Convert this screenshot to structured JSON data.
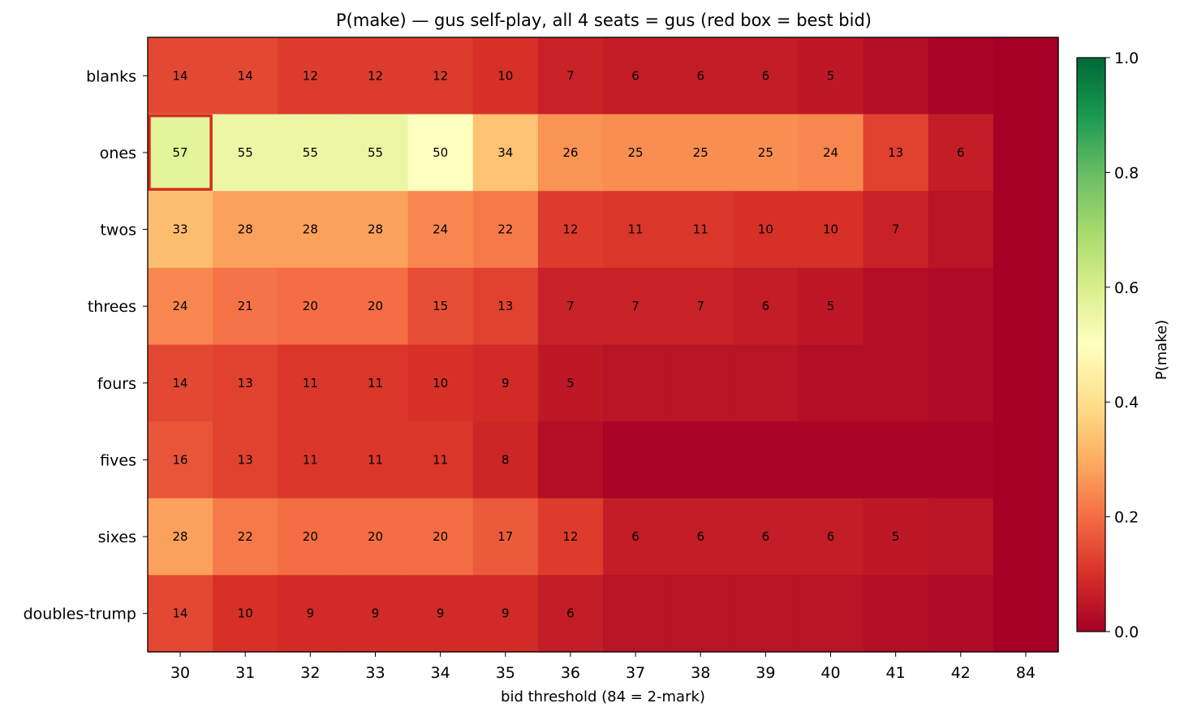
{
  "chart_data": {
    "type": "heatmap",
    "title": "P(make) — gus self-play, all 4 seats = gus  (red box = best bid)",
    "xlabel": "bid threshold (84 = 2-mark)",
    "ylabel": "",
    "colorbar_label": "P(make)",
    "colorbar_range": [
      0.0,
      1.0
    ],
    "colorbar_ticks": [
      "0.0",
      "0.2",
      "0.4",
      "0.6",
      "0.8",
      "1.0"
    ],
    "colormap": "RdYlGn",
    "x_categories": [
      "30",
      "31",
      "32",
      "33",
      "34",
      "35",
      "36",
      "37",
      "38",
      "39",
      "40",
      "41",
      "42",
      "84"
    ],
    "y_categories": [
      "blanks",
      "ones",
      "twos",
      "threes",
      "fours",
      "fives",
      "sixes",
      "doubles-trump"
    ],
    "values": [
      [
        0.14,
        0.14,
        0.12,
        0.12,
        0.12,
        0.1,
        0.07,
        0.06,
        0.06,
        0.06,
        0.05,
        0.03,
        0.01,
        0.0
      ],
      [
        0.57,
        0.55,
        0.55,
        0.55,
        0.5,
        0.34,
        0.26,
        0.25,
        0.25,
        0.25,
        0.24,
        0.13,
        0.06,
        0.0
      ],
      [
        0.33,
        0.28,
        0.28,
        0.28,
        0.24,
        0.22,
        0.12,
        0.11,
        0.11,
        0.1,
        0.1,
        0.07,
        0.04,
        0.0
      ],
      [
        0.24,
        0.21,
        0.2,
        0.2,
        0.15,
        0.13,
        0.07,
        0.07,
        0.07,
        0.06,
        0.05,
        0.03,
        0.02,
        0.0
      ],
      [
        0.14,
        0.13,
        0.11,
        0.11,
        0.1,
        0.09,
        0.05,
        0.04,
        0.04,
        0.04,
        0.03,
        0.03,
        0.02,
        0.0
      ],
      [
        0.16,
        0.13,
        0.11,
        0.11,
        0.11,
        0.08,
        0.03,
        0.01,
        0.01,
        0.01,
        0.01,
        0.01,
        0.01,
        0.0
      ],
      [
        0.28,
        0.22,
        0.2,
        0.2,
        0.2,
        0.17,
        0.12,
        0.06,
        0.06,
        0.06,
        0.06,
        0.05,
        0.04,
        0.0
      ],
      [
        0.14,
        0.1,
        0.09,
        0.09,
        0.09,
        0.09,
        0.06,
        0.04,
        0.04,
        0.04,
        0.04,
        0.03,
        0.02,
        0.0
      ]
    ],
    "cell_labels": [
      [
        "14",
        "14",
        "12",
        "12",
        "12",
        "10",
        "7",
        "6",
        "6",
        "6",
        "5",
        "",
        "",
        ""
      ],
      [
        "57",
        "55",
        "55",
        "55",
        "50",
        "34",
        "26",
        "25",
        "25",
        "25",
        "24",
        "13",
        "6",
        ""
      ],
      [
        "33",
        "28",
        "28",
        "28",
        "24",
        "22",
        "12",
        "11",
        "11",
        "10",
        "10",
        "7",
        "",
        ""
      ],
      [
        "24",
        "21",
        "20",
        "20",
        "15",
        "13",
        "7",
        "7",
        "7",
        "6",
        "5",
        "",
        "",
        ""
      ],
      [
        "14",
        "13",
        "11",
        "11",
        "10",
        "9",
        "5",
        "",
        "",
        "",
        "",
        "",
        "",
        ""
      ],
      [
        "16",
        "13",
        "11",
        "11",
        "11",
        "8",
        "",
        "",
        "",
        "",
        "",
        "",
        "",
        ""
      ],
      [
        "28",
        "22",
        "20",
        "20",
        "20",
        "17",
        "12",
        "6",
        "6",
        "6",
        "6",
        "5",
        "",
        ""
      ],
      [
        "14",
        "10",
        "9",
        "9",
        "9",
        "9",
        "6",
        "",
        "",
        "",
        "",
        "",
        "",
        ""
      ]
    ],
    "highlight": {
      "row": "ones",
      "col": "30",
      "color": "#d62c20",
      "meaning": "best bid"
    },
    "grid": false
  }
}
